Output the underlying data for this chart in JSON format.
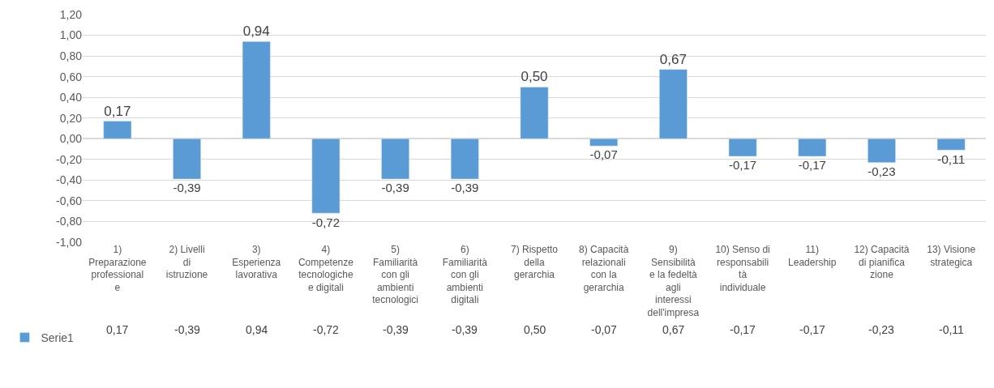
{
  "chart_data": {
    "type": "bar",
    "categories": [
      "1) Preparazione professionale",
      "2) Livelli di istruzione",
      "3) Esperienza lavorativa",
      "4) Competenze tecnologiche e digitali",
      "5) Familiarità con gli ambienti tecnologici",
      "6) Familiarità con gli ambienti digitali",
      "7) Rispetto della gerarchia",
      "8) Capacità relazionali con la gerarchia",
      "9) Sensibilità e la fedeltà agli interessi dell'impresa",
      "10) Senso di responsabilità individuale",
      "11) Leadership",
      "12) Capacità di pianificazione",
      "13) Visione strategica"
    ],
    "series": [
      {
        "name": "Serie1",
        "color": "#5b9bd5",
        "values": [
          0.17,
          -0.39,
          0.94,
          -0.72,
          -0.39,
          -0.39,
          0.5,
          -0.07,
          0.67,
          -0.17,
          -0.17,
          -0.23,
          -0.11
        ],
        "value_labels": [
          "0,17",
          "-0,39",
          "0,94",
          "-0,72",
          "-0,39",
          "-0,39",
          "0,50",
          "-0,07",
          "0,67",
          "-0,17",
          "-0,17",
          "-0,23",
          "-0,11"
        ]
      }
    ],
    "ylim": [
      -1.0,
      1.2
    ],
    "yticks": [
      {
        "value": -1.0,
        "label": "-1,00"
      },
      {
        "value": -0.8,
        "label": "-0,80"
      },
      {
        "value": -0.6,
        "label": "-0,60"
      },
      {
        "value": -0.4,
        "label": "-0,40"
      },
      {
        "value": -0.2,
        "label": "-0,20"
      },
      {
        "value": 0.0,
        "label": "0,00"
      },
      {
        "value": 0.2,
        "label": "0,20"
      },
      {
        "value": 0.4,
        "label": "0,40"
      },
      {
        "value": 0.6,
        "label": "0,60"
      },
      {
        "value": 0.8,
        "label": "0,80"
      },
      {
        "value": 1.0,
        "label": "1,00"
      },
      {
        "value": 1.2,
        "label": "1,20"
      }
    ],
    "grid": "y",
    "legend": "bottom left"
  }
}
